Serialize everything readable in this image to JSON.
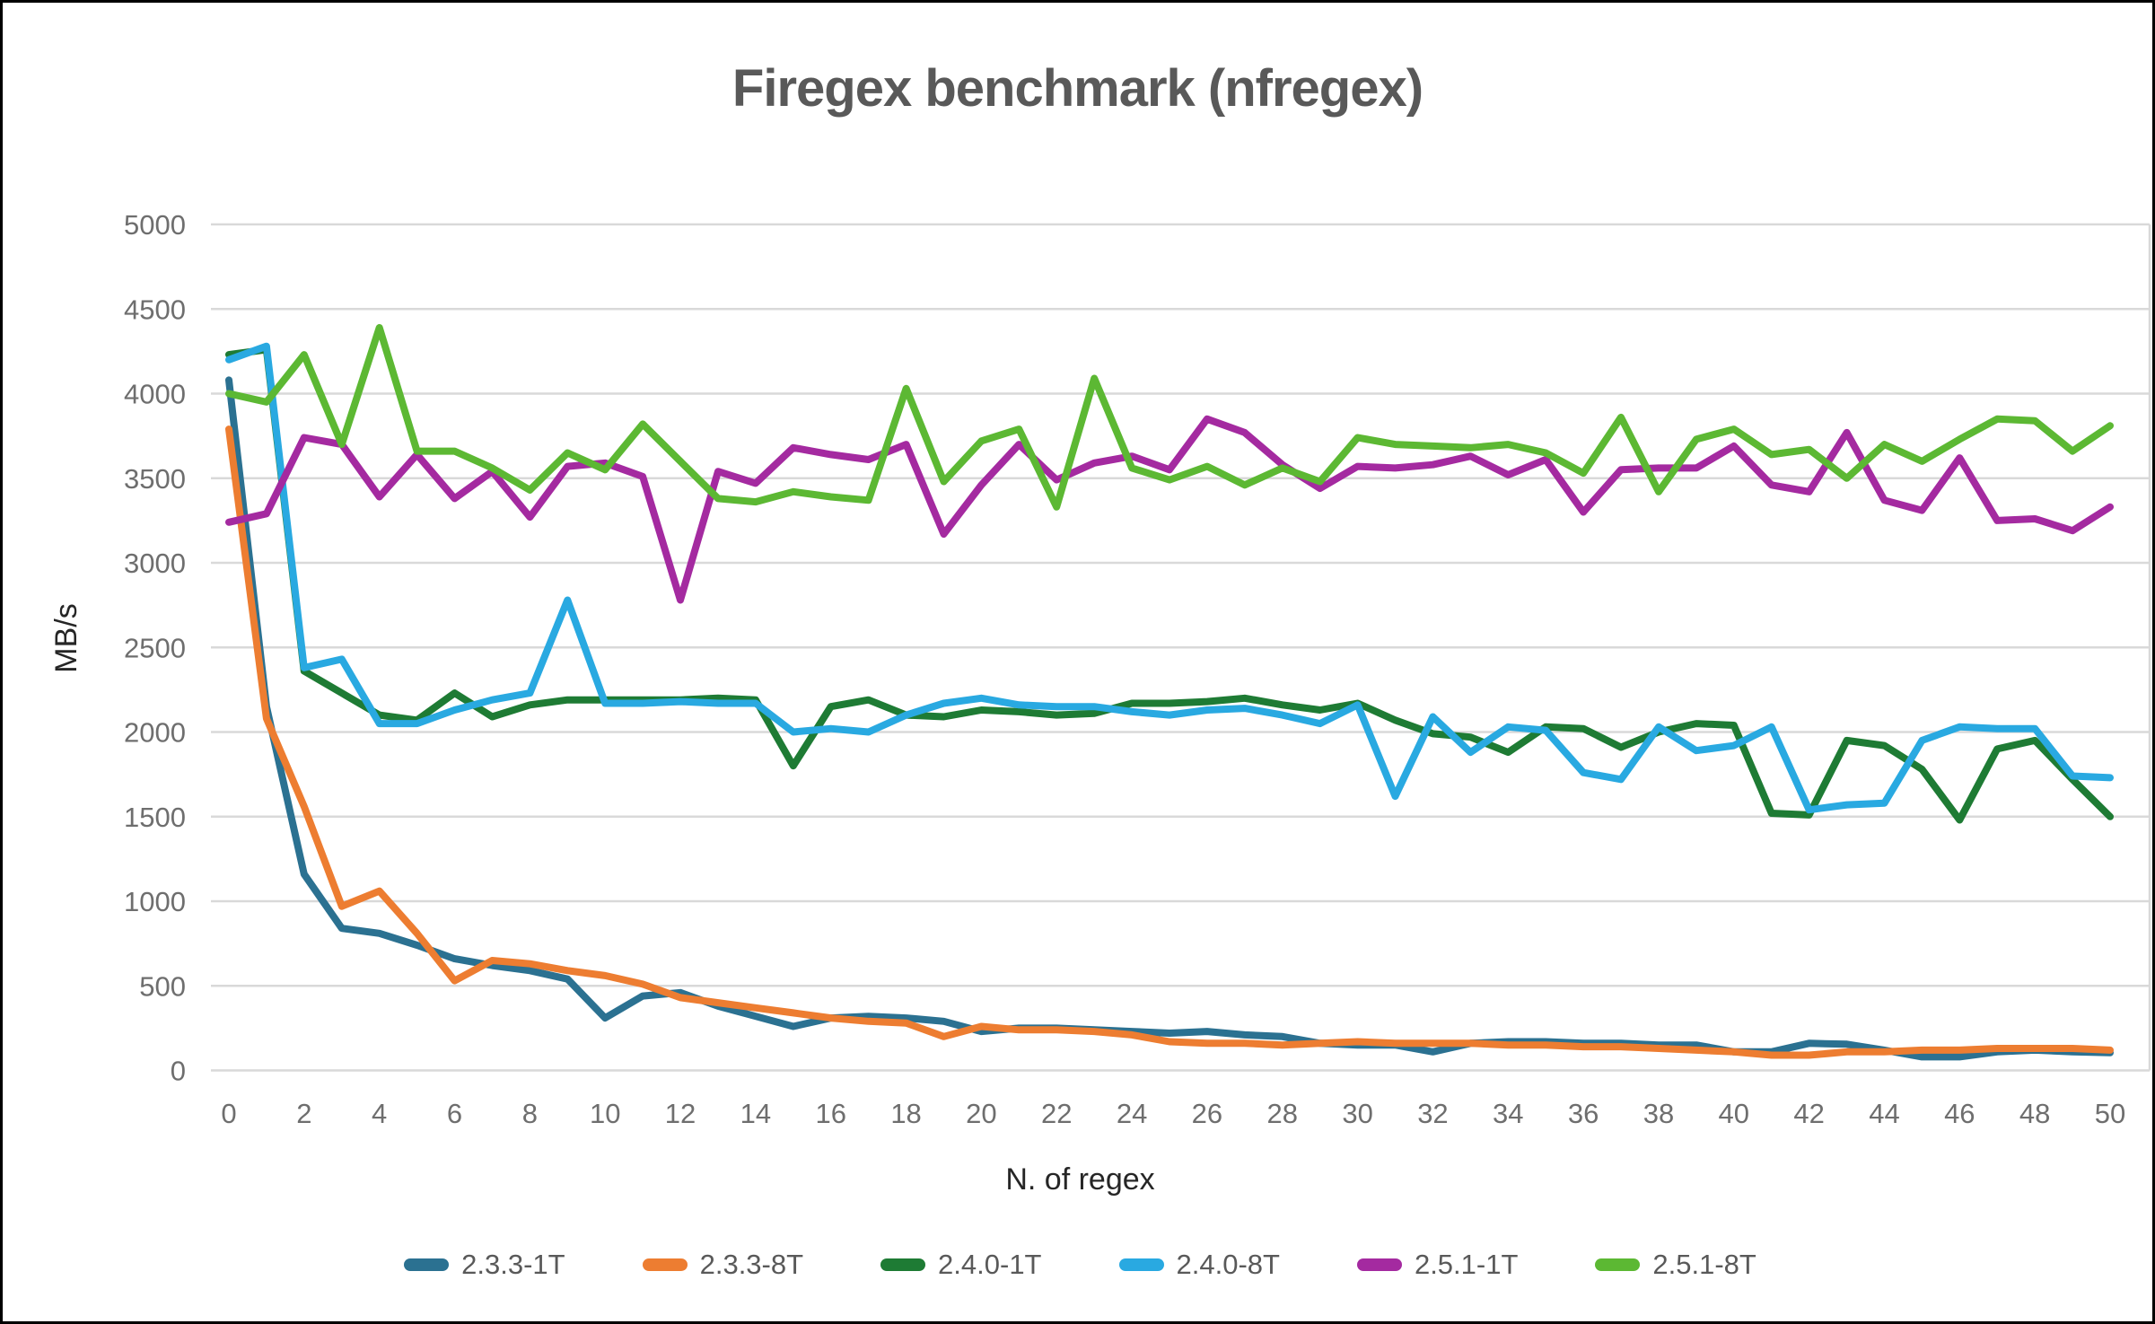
{
  "chart_data": {
    "type": "line",
    "title": "Firegex benchmark (nfregex)",
    "xlabel": "N. of regex",
    "ylabel": "MB/s",
    "xlim": [
      0,
      50
    ],
    "ylim": [
      0,
      5000
    ],
    "grid": "horizontal-only",
    "legend_position": "bottom",
    "y_ticks": [
      0,
      500,
      1000,
      1500,
      2000,
      2500,
      3000,
      3500,
      4000,
      4500,
      5000
    ],
    "x_ticks": [
      0,
      2,
      4,
      6,
      8,
      10,
      12,
      14,
      16,
      18,
      20,
      22,
      24,
      26,
      28,
      30,
      32,
      34,
      36,
      38,
      40,
      42,
      44,
      46,
      48,
      50
    ],
    "x": [
      0,
      1,
      2,
      3,
      4,
      5,
      6,
      7,
      8,
      9,
      10,
      11,
      12,
      13,
      14,
      15,
      16,
      17,
      18,
      19,
      20,
      21,
      22,
      23,
      24,
      25,
      26,
      27,
      28,
      29,
      30,
      31,
      32,
      33,
      34,
      35,
      36,
      37,
      38,
      39,
      40,
      41,
      42,
      43,
      44,
      45,
      46,
      47,
      48,
      49,
      50
    ],
    "series": [
      {
        "name": "2.3.3-1T",
        "color": "#2B7191",
        "values": [
          4080,
          2150,
          1160,
          840,
          810,
          740,
          660,
          620,
          590,
          540,
          310,
          440,
          460,
          380,
          320,
          260,
          310,
          320,
          310,
          290,
          230,
          250,
          250,
          240,
          230,
          220,
          230,
          210,
          200,
          160,
          150,
          150,
          110,
          160,
          170,
          170,
          160,
          160,
          150,
          150,
          110,
          110,
          160,
          155,
          120,
          80,
          80,
          110,
          120,
          110,
          105
        ]
      },
      {
        "name": "2.3.3-8T",
        "color": "#ED7D31",
        "values": [
          3790,
          2080,
          1560,
          970,
          1060,
          810,
          530,
          650,
          630,
          590,
          560,
          510,
          430,
          400,
          370,
          340,
          310,
          290,
          280,
          200,
          260,
          240,
          240,
          230,
          210,
          170,
          160,
          160,
          150,
          160,
          170,
          160,
          160,
          160,
          150,
          150,
          140,
          140,
          130,
          120,
          110,
          90,
          90,
          110,
          110,
          120,
          120,
          130,
          130,
          130,
          120
        ]
      },
      {
        "name": "2.4.0-1T",
        "color": "#1E7B34",
        "values": [
          4230,
          4260,
          2360,
          2230,
          2100,
          2070,
          2230,
          2090,
          2160,
          2190,
          2190,
          2190,
          2190,
          2200,
          2190,
          1800,
          2150,
          2190,
          2100,
          2090,
          2130,
          2120,
          2100,
          2110,
          2170,
          2170,
          2180,
          2200,
          2160,
          2130,
          2170,
          2070,
          1990,
          1970,
          1880,
          2030,
          2020,
          1910,
          2000,
          2050,
          2040,
          1520,
          1510,
          1950,
          1920,
          1780,
          1480,
          1900,
          1950,
          1720,
          1500
        ]
      },
      {
        "name": "2.4.0-8T",
        "color": "#29A9E1",
        "values": [
          4200,
          4280,
          2380,
          2430,
          2050,
          2050,
          2130,
          2190,
          2230,
          2780,
          2170,
          2170,
          2180,
          2170,
          2170,
          2000,
          2020,
          2000,
          2100,
          2170,
          2200,
          2160,
          2150,
          2150,
          2120,
          2100,
          2130,
          2140,
          2100,
          2050,
          2160,
          1620,
          2090,
          1880,
          2030,
          2010,
          1760,
          1720,
          2030,
          1890,
          1920,
          2030,
          1540,
          1570,
          1580,
          1950,
          2030,
          2020,
          2020,
          1740,
          1730
        ]
      },
      {
        "name": "2.5.1-1T",
        "color": "#A42AA0",
        "values": [
          3240,
          3290,
          3740,
          3700,
          3390,
          3640,
          3380,
          3540,
          3270,
          3570,
          3590,
          3510,
          2780,
          3540,
          3470,
          3680,
          3640,
          3610,
          3700,
          3170,
          3460,
          3700,
          3490,
          3590,
          3630,
          3550,
          3850,
          3770,
          3580,
          3440,
          3570,
          3560,
          3580,
          3630,
          3520,
          3610,
          3300,
          3550,
          3560,
          3560,
          3690,
          3460,
          3420,
          3770,
          3370,
          3310,
          3620,
          3250,
          3260,
          3190,
          3330
        ]
      },
      {
        "name": "2.5.1-8T",
        "color": "#5CB833",
        "values": [
          4000,
          3950,
          4230,
          3700,
          4390,
          3660,
          3660,
          3560,
          3430,
          3650,
          3550,
          3820,
          3600,
          3380,
          3360,
          3420,
          3390,
          3370,
          4030,
          3480,
          3720,
          3790,
          3330,
          4090,
          3560,
          3490,
          3570,
          3460,
          3560,
          3480,
          3740,
          3700,
          3690,
          3680,
          3700,
          3650,
          3530,
          3860,
          3420,
          3730,
          3790,
          3640,
          3670,
          3500,
          3700,
          3600,
          3730,
          3850,
          3840,
          3660,
          3810
        ]
      }
    ]
  }
}
